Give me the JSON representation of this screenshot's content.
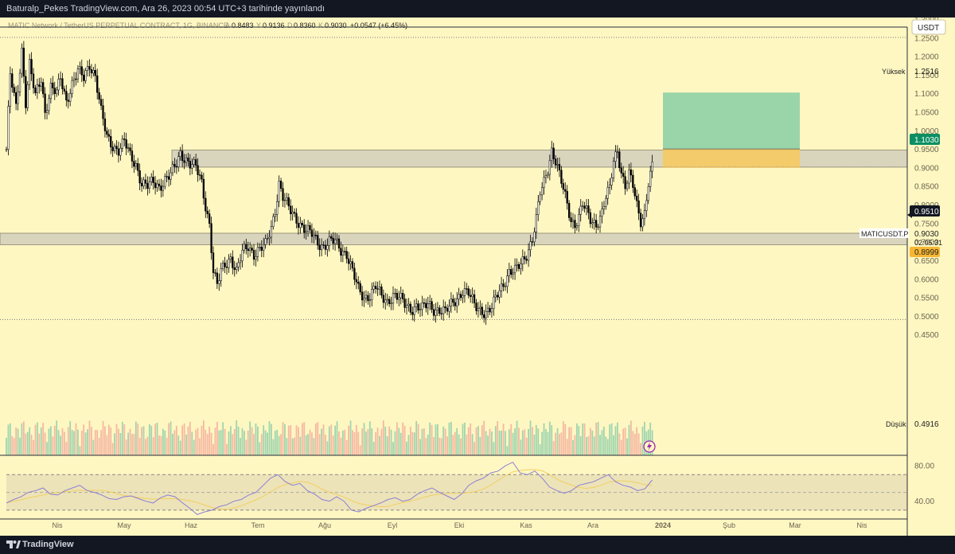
{
  "header": {
    "publish_line": "Baturalp_Pekes TradingView.com, Ara 26, 2023 00:54 UTC+3 tarihinde yayınlandı"
  },
  "legend": {
    "symbol": "MATIC Network / TetherUS PERPETUAL CONTRACT, 1G, BINANCE",
    "o_label": "A",
    "o": "0.8483",
    "h_label": "Y",
    "h": "0.9136",
    "l_label": "D",
    "l": "0.8360",
    "c_label": "K",
    "c": "0.9030",
    "change": "+0.0547 (+6.45%)"
  },
  "price_axis": {
    "currency": "USDT",
    "ticks": [
      "1.3000",
      "1.2500",
      "1.2000",
      "1.1500",
      "1.1000",
      "1.0500",
      "1.0000",
      "0.9500",
      "0.9000",
      "0.8500",
      "0.8000",
      "0.7500",
      "0.7000",
      "0.6500",
      "0.6000",
      "0.5500",
      "0.5000",
      "0.4500"
    ],
    "high_label": "Yüksek",
    "high_value": "1.2516",
    "low_label": "Düşük",
    "low_value": "0.4916",
    "target_value": "1.1030",
    "entry_value": "0.9510",
    "symbol_tag": "MATICUSDT.P",
    "last_price": "0.9030",
    "countdown": "02:05:31",
    "stop_value": "0.8999"
  },
  "rsi_axis": {
    "ticks": [
      "80.00",
      "40.00"
    ]
  },
  "time_axis": {
    "labels": [
      "Nis",
      "May",
      "Haz",
      "Tem",
      "Ağu",
      "Eyl",
      "Eki",
      "Kas",
      "Ara",
      "2024",
      "Şub",
      "Mar",
      "Nis"
    ]
  },
  "footer": {
    "brand": "TradingView"
  },
  "colors": {
    "background": "#fff7c2",
    "bull": "#000000",
    "bear": "#000000",
    "zone_fill": "#d9d4bc",
    "target": "#8fcfa6",
    "stop": "#f7c95c",
    "rsi_line": "#8b7fd6",
    "rsi_ma": "#f0d060",
    "rsi_band": "#ede3b8",
    "last_price_tag": "#f7b733",
    "target_tag": "#0b8f62"
  },
  "icons": {
    "lightning": "lightning-icon",
    "logo": "tradingview-logo-icon"
  },
  "chart_data": {
    "type": "candlestick",
    "symbol": "MATICUSDT.P",
    "timeframe": "1G",
    "ylim": [
      0.43,
      1.32
    ],
    "x_months": [
      "Nis",
      "May",
      "Haz",
      "Tem",
      "Ağu",
      "Eyl",
      "Eki",
      "Kas",
      "Ara",
      "2024",
      "Şub",
      "Mar",
      "Nis"
    ],
    "grid": false,
    "close_path": [
      [
        0,
        0.95
      ],
      [
        2,
        1.15
      ],
      [
        5,
        1.06
      ],
      [
        8,
        1.22
      ],
      [
        10,
        1.08
      ],
      [
        12,
        1.18
      ],
      [
        15,
        1.09
      ],
      [
        18,
        1.14
      ],
      [
        20,
        1.05
      ],
      [
        23,
        1.12
      ],
      [
        26,
        1.1
      ],
      [
        28,
        1.14
      ],
      [
        31,
        1.08
      ],
      [
        34,
        1.13
      ],
      [
        37,
        1.16
      ],
      [
        40,
        1.14
      ],
      [
        43,
        1.18
      ],
      [
        46,
        1.15
      ],
      [
        49,
        1.05
      ],
      [
        52,
        0.98
      ],
      [
        55,
        0.96
      ],
      [
        58,
        0.95
      ],
      [
        61,
        0.97
      ],
      [
        64,
        0.93
      ],
      [
        67,
        0.91
      ],
      [
        70,
        0.86
      ],
      [
        73,
        0.85
      ],
      [
        76,
        0.86
      ],
      [
        79,
        0.85
      ],
      [
        82,
        0.87
      ],
      [
        85,
        0.88
      ],
      [
        88,
        0.91
      ],
      [
        90,
        0.94
      ],
      [
        92,
        0.93
      ],
      [
        95,
        0.91
      ],
      [
        98,
        0.9
      ],
      [
        101,
        0.86
      ],
      [
        103,
        0.8
      ],
      [
        105,
        0.75
      ],
      [
        107,
        0.62
      ],
      [
        109,
        0.58
      ],
      [
        111,
        0.62
      ],
      [
        113,
        0.64
      ],
      [
        116,
        0.66
      ],
      [
        119,
        0.62
      ],
      [
        122,
        0.67
      ],
      [
        125,
        0.69
      ],
      [
        128,
        0.67
      ],
      [
        131,
        0.68
      ],
      [
        134,
        0.69
      ],
      [
        137,
        0.74
      ],
      [
        139,
        0.79
      ],
      [
        141,
        0.86
      ],
      [
        143,
        0.82
      ],
      [
        146,
        0.79
      ],
      [
        149,
        0.77
      ],
      [
        152,
        0.75
      ],
      [
        155,
        0.73
      ],
      [
        158,
        0.72
      ],
      [
        161,
        0.7
      ],
      [
        164,
        0.69
      ],
      [
        167,
        0.7
      ],
      [
        170,
        0.7
      ],
      [
        173,
        0.68
      ],
      [
        176,
        0.67
      ],
      [
        179,
        0.62
      ],
      [
        182,
        0.57
      ],
      [
        185,
        0.55
      ],
      [
        188,
        0.56
      ],
      [
        191,
        0.58
      ],
      [
        194,
        0.55
      ],
      [
        197,
        0.54
      ],
      [
        200,
        0.56
      ],
      [
        203,
        0.55
      ],
      [
        206,
        0.53
      ],
      [
        209,
        0.52
      ],
      [
        212,
        0.53
      ],
      [
        215,
        0.52
      ],
      [
        218,
        0.53
      ],
      [
        221,
        0.52
      ],
      [
        224,
        0.52
      ],
      [
        227,
        0.51
      ],
      [
        230,
        0.53
      ],
      [
        233,
        0.55
      ],
      [
        236,
        0.57
      ],
      [
        239,
        0.56
      ],
      [
        242,
        0.53
      ],
      [
        245,
        0.52
      ],
      [
        248,
        0.51
      ],
      [
        251,
        0.52
      ],
      [
        254,
        0.56
      ],
      [
        257,
        0.59
      ],
      [
        260,
        0.62
      ],
      [
        263,
        0.62
      ],
      [
        266,
        0.64
      ],
      [
        269,
        0.67
      ],
      [
        272,
        0.71
      ],
      [
        274,
        0.76
      ],
      [
        276,
        0.83
      ],
      [
        278,
        0.86
      ],
      [
        280,
        0.9
      ],
      [
        282,
        0.95
      ],
      [
        284,
        0.92
      ],
      [
        286,
        0.88
      ],
      [
        288,
        0.84
      ],
      [
        290,
        0.8
      ],
      [
        292,
        0.76
      ],
      [
        294,
        0.75
      ],
      [
        296,
        0.77
      ],
      [
        298,
        0.8
      ],
      [
        300,
        0.78
      ],
      [
        302,
        0.76
      ],
      [
        305,
        0.75
      ],
      [
        308,
        0.78
      ],
      [
        310,
        0.82
      ],
      [
        312,
        0.84
      ],
      [
        314,
        0.92
      ],
      [
        316,
        0.95
      ],
      [
        318,
        0.89
      ],
      [
        320,
        0.85
      ],
      [
        322,
        0.88
      ],
      [
        324,
        0.85
      ],
      [
        326,
        0.8
      ],
      [
        328,
        0.76
      ],
      [
        330,
        0.78
      ],
      [
        332,
        0.86
      ],
      [
        334,
        0.9
      ]
    ],
    "zones": [
      {
        "name": "resistance",
        "range": [
          0.902,
          0.948
        ]
      },
      {
        "name": "support",
        "range": [
          0.693,
          0.724
        ]
      }
    ],
    "long_position": {
      "entry": 0.951,
      "target": 1.103,
      "stop": 0.8999
    },
    "levels": {
      "high": 1.2516,
      "low": 0.4916,
      "last": 0.903
    },
    "rsi": {
      "ylim": [
        20,
        90
      ],
      "band": [
        30,
        70
      ],
      "midline": 50,
      "values": [
        38,
        42,
        45,
        50,
        52,
        55,
        48,
        47,
        52,
        55,
        58,
        52,
        50,
        47,
        43,
        42,
        45,
        46,
        43,
        40,
        38,
        44,
        47,
        45,
        38,
        32,
        25,
        28,
        30,
        34,
        36,
        40,
        42,
        47,
        50,
        58,
        66,
        70,
        62,
        58,
        60,
        52,
        48,
        42,
        40,
        45,
        40,
        30,
        28,
        32,
        35,
        38,
        42,
        44,
        40,
        42,
        48,
        52,
        55,
        50,
        46,
        42,
        48,
        58,
        63,
        66,
        72,
        74,
        80,
        84,
        72,
        70,
        74,
        66,
        56,
        52,
        49,
        52,
        58,
        60,
        62,
        66,
        70,
        62,
        58,
        56,
        52,
        54,
        64
      ]
    }
  }
}
